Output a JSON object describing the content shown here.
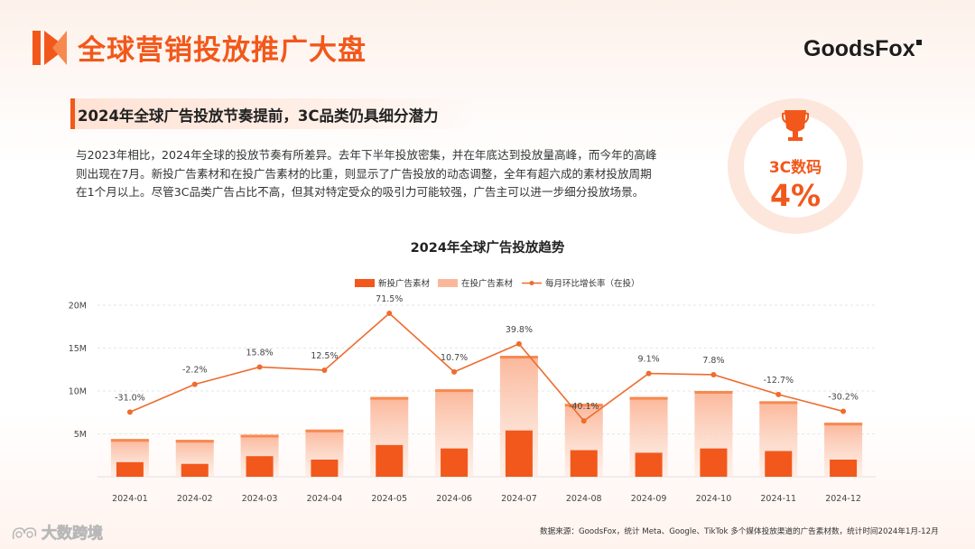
{
  "header": {
    "title": "全球营销投放推广大盘",
    "brand": "GoodsFox"
  },
  "subtitle": "2024年全球广告投放节奏提前，3C品类仍具细分潜力",
  "paragraph": [
    "与2023年相比，2024年全球的投放节奏有所差异。去年下半年投放密集，并在年底达到投放量高峰，而今年的高峰",
    "则出现在7月。新投广告素材和在投广告素材的比重，则显示了广告投放的动态调整，全年有超六成的素材投放周期",
    "在1个月以上。尽管3C品类广告占比不高，但其对特定受众的吸引力可能较强，广告主可以进一步细分投放场景。"
  ],
  "badge": {
    "label": "3C数码",
    "value": "4%"
  },
  "chart_data": {
    "type": "bar+line",
    "title": "2024年全球广告投放趋势",
    "categories": [
      "2024-01",
      "2024-02",
      "2024-03",
      "2024-04",
      "2024-05",
      "2024-06",
      "2024-07",
      "2024-08",
      "2024-09",
      "2024-10",
      "2024-11",
      "2024-12"
    ],
    "legend": [
      "新投广告素材",
      "在投广告素材",
      "每月环比增长率（在投）"
    ],
    "y_ticks": [
      "5M",
      "10M",
      "15M",
      "20M"
    ],
    "ylim": [
      0,
      20000000
    ],
    "series": [
      {
        "name": "新投广告素材",
        "type": "bar",
        "values": [
          1700000,
          1500000,
          2400000,
          2000000,
          3700000,
          3300000,
          5400000,
          3100000,
          2800000,
          3300000,
          3000000,
          2000000
        ]
      },
      {
        "name": "在投广告素材",
        "type": "bar",
        "values": [
          4400000,
          4300000,
          4900000,
          5500000,
          9300000,
          10200000,
          14100000,
          8500000,
          9300000,
          10000000,
          8800000,
          6300000
        ]
      },
      {
        "name": "每月环比增长率（在投）",
        "type": "line",
        "values": [
          -31.0,
          -2.2,
          15.8,
          12.5,
          71.5,
          10.7,
          39.8,
          -40.1,
          9.1,
          7.8,
          -12.7,
          -30.2
        ],
        "labels": [
          "-31.0%",
          "-2.2%",
          "15.8%",
          "12.5%",
          "71.5%",
          "10.7%",
          "39.8%",
          "-40.1%",
          "9.1%",
          "7.8%",
          "-12.7%",
          "-30.2%"
        ]
      }
    ],
    "colors": {
      "new": "#f2581b",
      "active_top": "#fbb79a",
      "line": "#ee6c2e"
    }
  },
  "footnote": "数据来源：GoodsFox，统计 Meta、Google、TikTok 多个媒体投放渠道的广告素材数，统计时间2024年1月-12月",
  "watermark": "大数跨境"
}
